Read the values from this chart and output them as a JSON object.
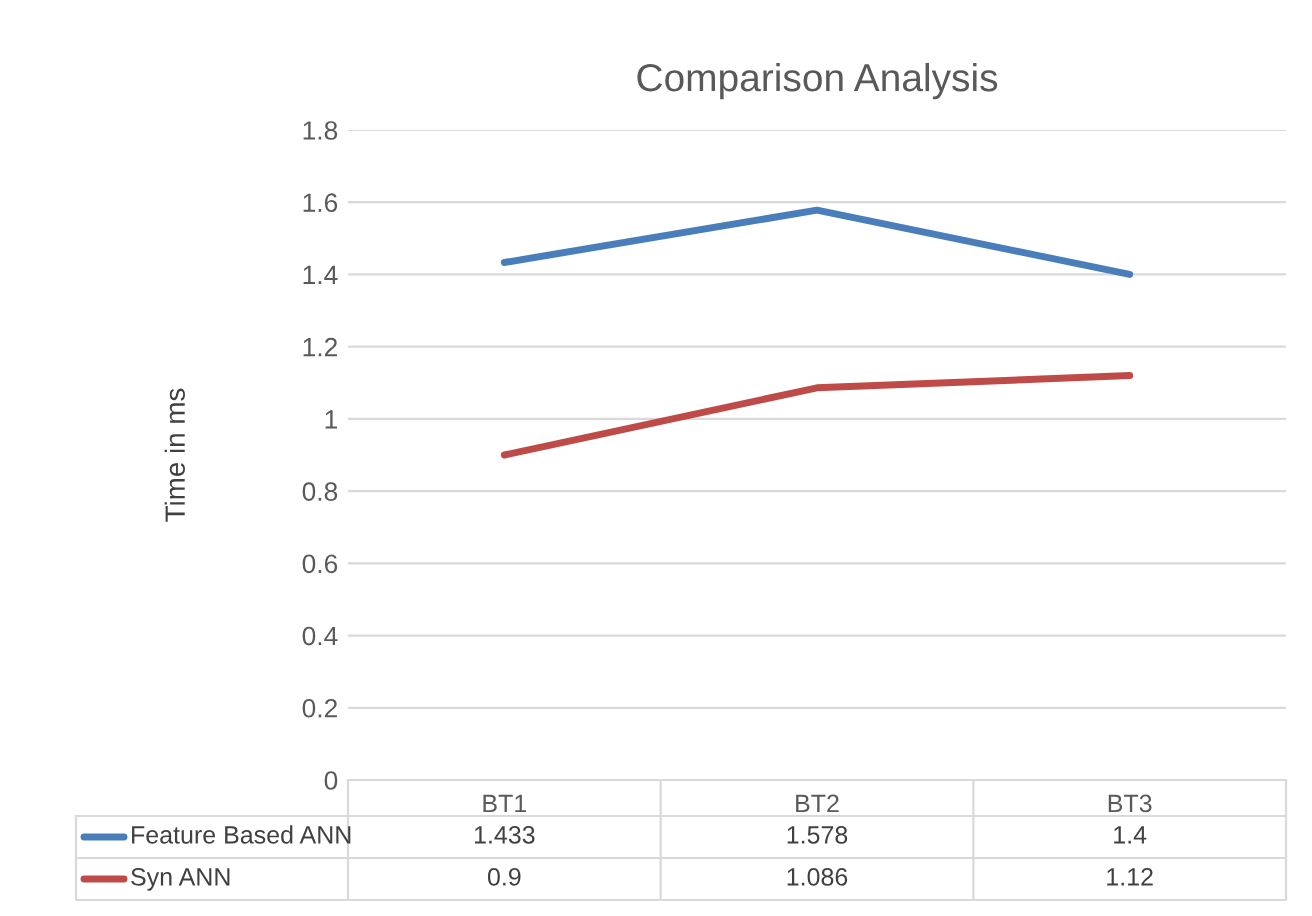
{
  "chart_data": {
    "type": "line",
    "title": "Comparison Analysis",
    "ylabel": "Time in ms",
    "categories": [
      "BT1",
      "BT2",
      "BT3"
    ],
    "series": [
      {
        "name": "Feature Based ANN",
        "color": "#4a7ebb",
        "values": [
          1.433,
          1.578,
          1.4
        ]
      },
      {
        "name": "Syn ANN",
        "color": "#be4b48",
        "values": [
          0.9,
          1.086,
          1.12
        ]
      }
    ],
    "ylim": [
      0,
      1.8
    ],
    "yticks": [
      0,
      0.2,
      0.4,
      0.6,
      0.8,
      1,
      1.2,
      1.4,
      1.6,
      1.8
    ],
    "grid": "y",
    "legend": "bottom",
    "data_labels": true,
    "marker": "none",
    "line_style": "solid"
  }
}
